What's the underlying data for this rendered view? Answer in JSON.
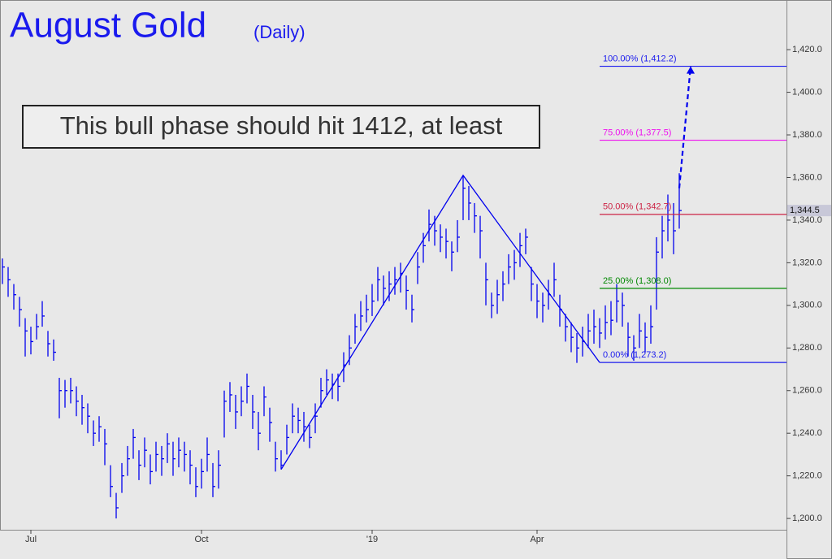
{
  "chart_data": {
    "type": "ohlc",
    "title": "August Gold",
    "subtitle": "(Daily)",
    "annotation": "This bull phase should hit 1412, at least",
    "color": "#0000ee",
    "categories": [
      null,
      null,
      null,
      null,
      null,
      "Jul",
      null,
      null,
      null,
      null,
      null,
      null,
      null,
      null,
      null,
      null,
      null,
      null,
      null,
      null,
      null,
      null,
      null,
      null,
      null,
      null,
      null,
      null,
      null,
      null,
      null,
      null,
      null,
      null,
      null,
      "Oct",
      null,
      null,
      null,
      null,
      null,
      null,
      null,
      null,
      null,
      null,
      null,
      null,
      null,
      null,
      null,
      null,
      null,
      null,
      null,
      null,
      null,
      null,
      null,
      null,
      null,
      null,
      null,
      null,
      null,
      "'19",
      null,
      null,
      null,
      null,
      null,
      null,
      null,
      null,
      null,
      null,
      null,
      null,
      null,
      null,
      null,
      null,
      null,
      null,
      null,
      null,
      null,
      null,
      null,
      null,
      null,
      null,
      null,
      null,
      "Apr",
      null,
      null,
      null,
      null,
      null,
      null,
      null,
      null,
      null,
      null,
      null,
      null,
      null,
      null,
      null,
      null,
      null,
      null,
      null,
      null,
      null,
      null,
      null,
      null,
      null
    ],
    "high": [
      1322,
      1318,
      1310,
      1304,
      1294,
      1290,
      1296,
      1302,
      1288,
      1284,
      1266,
      1265,
      1266,
      1262,
      1258,
      1254,
      1246,
      1248,
      1242,
      1225,
      1212,
      1226,
      1234,
      1242,
      1232,
      1238,
      1230,
      1236,
      1234,
      1240,
      1236,
      1238,
      1236,
      1232,
      1224,
      1228,
      1238,
      1226,
      1232,
      1260,
      1264,
      1258,
      1262,
      1268,
      1258,
      1250,
      1262,
      1252,
      1236,
      1232,
      1244,
      1254,
      1252,
      1250,
      1244,
      1254,
      1266,
      1270,
      1268,
      1268,
      1278,
      1286,
      1296,
      1302,
      1305,
      1310,
      1318,
      1314,
      1316,
      1318,
      1320,
      1314,
      1305,
      1325,
      1334,
      1345,
      1342,
      1338,
      1336,
      1330,
      1340,
      1361,
      1356,
      1348,
      1342,
      1320,
      1306,
      1312,
      1316,
      1324,
      1326,
      1334,
      1336,
      1318,
      1310,
      1306,
      1312,
      1320,
      1305,
      1296,
      1292,
      1287,
      1290,
      1296,
      1298,
      1294,
      1300,
      1302,
      1310,
      1306,
      1292,
      1286,
      1296,
      1292,
      1300,
      1332,
      1342,
      1352,
      1348,
      1362
    ],
    "low": [
      1310,
      1304,
      1298,
      1290,
      1276,
      1277,
      1284,
      1290,
      1276,
      1274,
      1247,
      1252,
      1254,
      1248,
      1244,
      1240,
      1234,
      1236,
      1225,
      1210,
      1200,
      1212,
      1220,
      1228,
      1218,
      1224,
      1216,
      1222,
      1220,
      1226,
      1220,
      1224,
      1222,
      1216,
      1210,
      1214,
      1222,
      1210,
      1214,
      1238,
      1250,
      1242,
      1248,
      1254,
      1242,
      1232,
      1248,
      1236,
      1222,
      1223,
      1230,
      1240,
      1240,
      1236,
      1233,
      1240,
      1252,
      1258,
      1256,
      1255,
      1264,
      1272,
      1282,
      1288,
      1292,
      1295,
      1302,
      1300,
      1302,
      1305,
      1306,
      1298,
      1292,
      1310,
      1320,
      1330,
      1328,
      1325,
      1322,
      1316,
      1325,
      1340,
      1340,
      1334,
      1322,
      1300,
      1294,
      1296,
      1302,
      1310,
      1312,
      1318,
      1324,
      1302,
      1294,
      1292,
      1298,
      1304,
      1290,
      1283,
      1278,
      1273,
      1276,
      1280,
      1282,
      1280,
      1284,
      1286,
      1292,
      1290,
      1276,
      1274,
      1280,
      1278,
      1282,
      1298,
      1322,
      1330,
      1324,
      1336
    ],
    "close": [
      1318,
      1312,
      1305,
      1298,
      1288,
      1283,
      1290,
      1295,
      1282,
      1278,
      1260,
      1260,
      1260,
      1255,
      1252,
      1248,
      1240,
      1243,
      1235,
      1215,
      1205,
      1220,
      1228,
      1238,
      1225,
      1232,
      1222,
      1230,
      1228,
      1235,
      1228,
      1232,
      1230,
      1225,
      1215,
      1222,
      1230,
      1215,
      1225,
      1255,
      1258,
      1250,
      1255,
      1262,
      1250,
      1240,
      1257,
      1245,
      1228,
      1225,
      1238,
      1248,
      1246,
      1243,
      1238,
      1248,
      1260,
      1265,
      1263,
      1262,
      1272,
      1280,
      1290,
      1295,
      1298,
      1302,
      1312,
      1308,
      1310,
      1312,
      1315,
      1307,
      1298,
      1318,
      1328,
      1338,
      1335,
      1332,
      1330,
      1325,
      1332,
      1355,
      1348,
      1342,
      1335,
      1312,
      1300,
      1305,
      1310,
      1318,
      1320,
      1328,
      1332,
      1310,
      1302,
      1300,
      1305,
      1312,
      1298,
      1290,
      1285,
      1280,
      1283,
      1288,
      1290,
      1287,
      1292,
      1293,
      1302,
      1300,
      1285,
      1280,
      1288,
      1285,
      1290,
      1325,
      1335,
      1340,
      1335,
      1344.5
    ],
    "last_price_label": "1,344.5",
    "levels": [
      {
        "value": 1412.2,
        "label": "100.00% (1,412.2)",
        "color": "#1a1aee"
      },
      {
        "value": 1377.5,
        "label": "75.00% (1,377.5)",
        "color": "#ee11ee"
      },
      {
        "value": 1342.7,
        "label": "50.00% (1,342.7)",
        "color": "#cc2244"
      },
      {
        "value": 1308.0,
        "label": "25.00% (1,308.0)",
        "color": "#008800"
      },
      {
        "value": 1273.2,
        "label": "0.00% (1,273.2)",
        "color": "#1a1aee"
      }
    ],
    "zigzag": {
      "x": [
        49,
        81,
        105
      ],
      "values": [
        1223,
        1361,
        1273.2
      ]
    },
    "projection": {
      "x": [
        119,
        121
      ],
      "values": [
        1355,
        1412.2
      ]
    },
    "ylim": [
      1194.7,
      1443.3
    ],
    "yticks": [
      {
        "value": 1200,
        "label": "1,200.0"
      },
      {
        "value": 1220,
        "label": "1,220.0"
      },
      {
        "value": 1240,
        "label": "1,240.0"
      },
      {
        "value": 1260,
        "label": "1,260.0"
      },
      {
        "value": 1280,
        "label": "1,280.0"
      },
      {
        "value": 1300,
        "label": "1,300.0"
      },
      {
        "value": 1320,
        "label": "1,320.0"
      },
      {
        "value": 1340,
        "label": "1,340.0"
      },
      {
        "value": 1360,
        "label": "1,360.0"
      },
      {
        "value": 1380,
        "label": "1,380.0"
      },
      {
        "value": 1400,
        "label": "1,400.0"
      },
      {
        "value": 1420,
        "label": "1,420.0"
      }
    ]
  }
}
